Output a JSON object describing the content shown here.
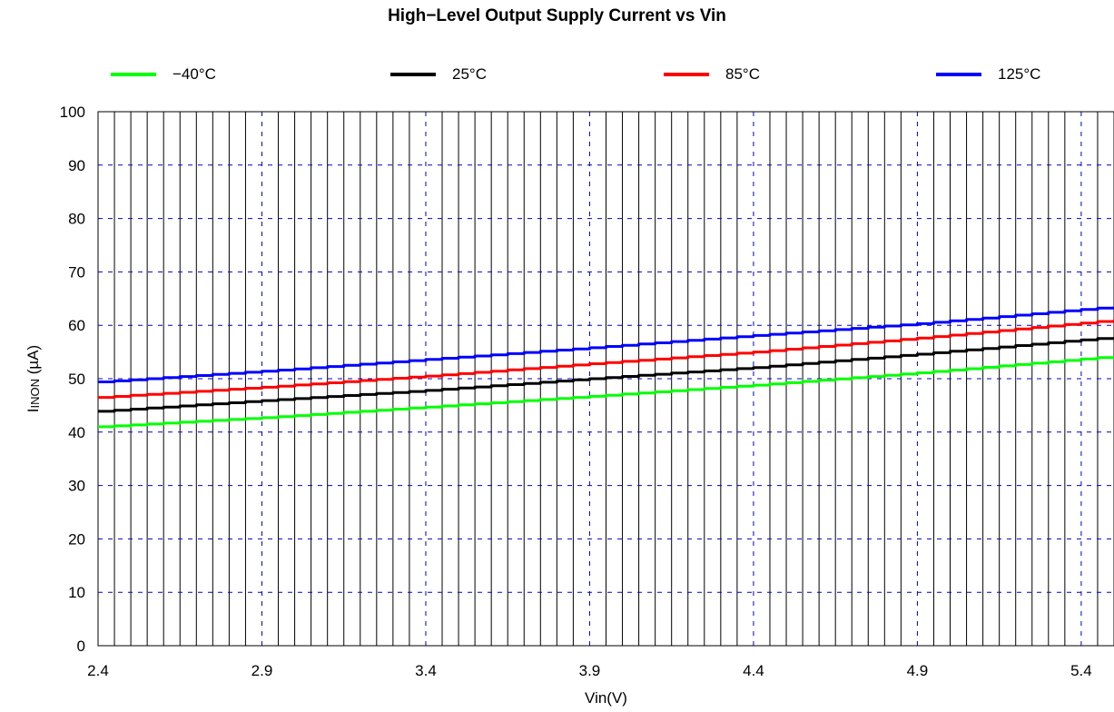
{
  "chart_data": {
    "type": "line",
    "title": "High−Level Output Supply Current vs Vin",
    "xlabel": "Vin(V)",
    "ylabel_main": "I",
    "ylabel_sub": "INON",
    "ylabel_unit": " (µA)",
    "xlim": [
      2.4,
      5.5
    ],
    "ylim": [
      0,
      100
    ],
    "x_ticks": [
      "2.4",
      "2.9",
      "3.4",
      "3.9",
      "4.4",
      "4.9",
      "5.4"
    ],
    "x_tick_values": [
      2.4,
      2.9,
      3.4,
      3.9,
      4.4,
      4.9,
      5.4
    ],
    "y_ticks": [
      "0",
      "10",
      "20",
      "30",
      "40",
      "50",
      "60",
      "70",
      "80",
      "90",
      "100"
    ],
    "y_tick_values": [
      0,
      10,
      20,
      30,
      40,
      50,
      60,
      70,
      80,
      90,
      100
    ],
    "grid": true,
    "minor_x_step": 0.05,
    "legend_position": "top",
    "series": [
      {
        "name": "−40°C",
        "color": "#00ff00",
        "x": [
          2.4,
          2.9,
          3.4,
          3.9,
          4.4,
          4.9,
          5.5
        ],
        "values": [
          41.0,
          42.7,
          44.7,
          46.7,
          48.8,
          51.1,
          54.2
        ]
      },
      {
        "name": "25°C",
        "color": "#000000",
        "x": [
          2.4,
          2.9,
          3.4,
          3.9,
          4.4,
          4.9,
          5.5
        ],
        "values": [
          43.9,
          45.9,
          47.8,
          50.0,
          52.1,
          54.6,
          57.8
        ]
      },
      {
        "name": "85°C",
        "color": "#ff0000",
        "x": [
          2.4,
          2.9,
          3.4,
          3.9,
          4.4,
          4.9,
          5.5
        ],
        "values": [
          46.5,
          48.4,
          50.5,
          52.8,
          55.0,
          57.6,
          61.0
        ]
      },
      {
        "name": "125°C",
        "color": "#0000ff",
        "x": [
          2.4,
          2.9,
          3.4,
          3.9,
          4.4,
          4.9,
          5.5
        ],
        "values": [
          49.4,
          51.4,
          53.6,
          55.8,
          58.1,
          60.3,
          63.5
        ]
      }
    ]
  }
}
